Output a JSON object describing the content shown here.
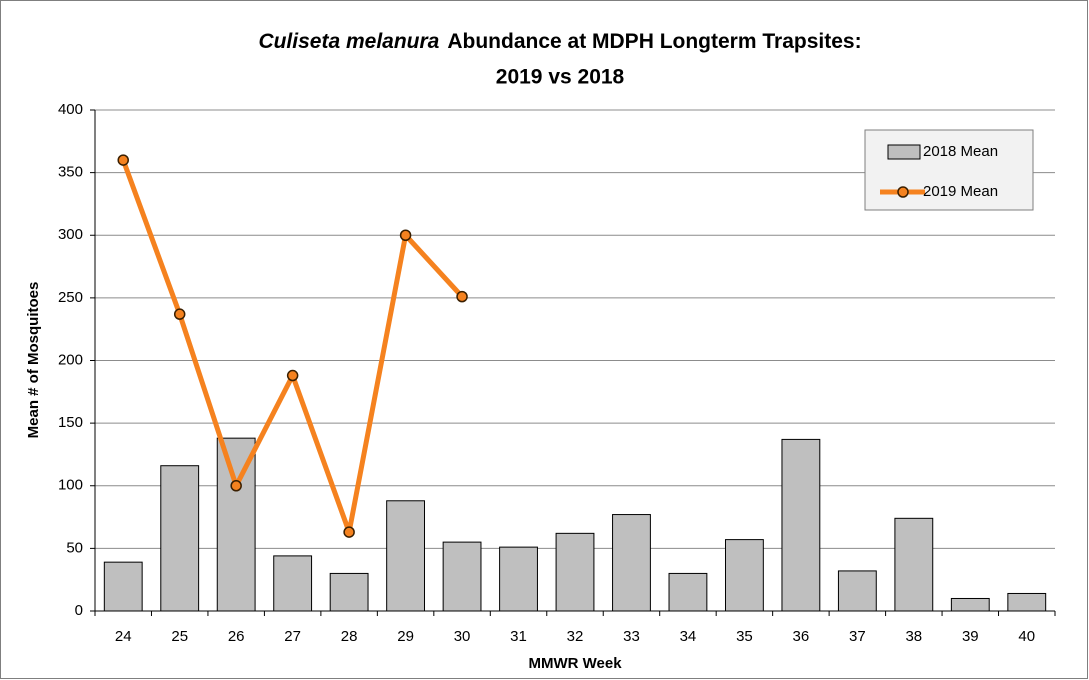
{
  "chart_data": {
    "type": "bar",
    "title": [
      "Culiseta melanura",
      "Abundance at MDPH Longterm Trapsites:",
      "2019 vs 2018"
    ],
    "x_label": "MMWR Week",
    "y_label": "Mean # of Mosquitoes",
    "categories": [
      "24",
      "25",
      "26",
      "27",
      "28",
      "29",
      "30",
      "31",
      "32",
      "33",
      "34",
      "35",
      "36",
      "37",
      "38",
      "39",
      "40"
    ],
    "series": [
      {
        "name": "2018 Mean",
        "type": "bar",
        "color": "#bfbfbf",
        "values": [
          39,
          116,
          138,
          44,
          30,
          88,
          55,
          51,
          62,
          77,
          30,
          57,
          137,
          32,
          74,
          10,
          14
        ]
      },
      {
        "name": "2019 Mean",
        "type": "line",
        "color": "#f5821f",
        "values": [
          360,
          237,
          100,
          188,
          63,
          300,
          251,
          null,
          null,
          null,
          null,
          null,
          null,
          null,
          null,
          null,
          null
        ]
      }
    ],
    "ylim": [
      0,
      400
    ],
    "yticks": [
      0,
      50,
      100,
      150,
      200,
      250,
      300,
      350,
      400
    ],
    "grid": true,
    "legend": "top-right"
  }
}
